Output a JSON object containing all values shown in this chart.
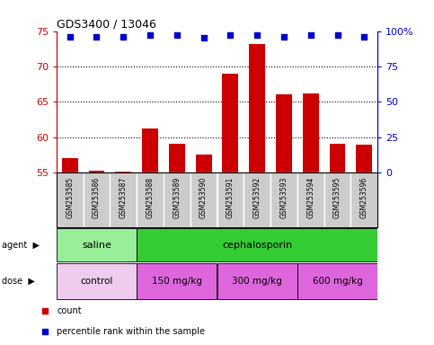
{
  "title": "GDS3400 / 13046",
  "samples": [
    "GSM253585",
    "GSM253586",
    "GSM253587",
    "GSM253588",
    "GSM253589",
    "GSM253590",
    "GSM253591",
    "GSM253592",
    "GSM253593",
    "GSM253594",
    "GSM253595",
    "GSM253596"
  ],
  "counts": [
    57.0,
    55.2,
    55.1,
    61.2,
    59.1,
    57.5,
    69.0,
    73.2,
    66.1,
    66.2,
    59.1,
    59.0
  ],
  "percentile_ranks": [
    96,
    96,
    96,
    97,
    97,
    95,
    97,
    97,
    96,
    97,
    97,
    96
  ],
  "ylim_left": [
    55,
    75
  ],
  "ylim_right": [
    0,
    100
  ],
  "yticks_left": [
    55,
    60,
    65,
    70,
    75
  ],
  "yticks_right": [
    0,
    25,
    50,
    75,
    100
  ],
  "ytick_labels_right": [
    "0",
    "25",
    "50",
    "75",
    "100%"
  ],
  "bar_color": "#cc0000",
  "dot_color": "#0000cc",
  "bar_width": 0.6,
  "agent_labels": [
    {
      "text": "saline",
      "start": 0,
      "end": 3,
      "color": "#99ee99"
    },
    {
      "text": "cephalosporin",
      "start": 3,
      "end": 12,
      "color": "#33cc33"
    }
  ],
  "dose_labels": [
    {
      "text": "control",
      "start": 0,
      "end": 3,
      "color": "#eeccee"
    },
    {
      "text": "150 mg/kg",
      "start": 3,
      "end": 6,
      "color": "#dd66dd"
    },
    {
      "text": "300 mg/kg",
      "start": 6,
      "end": 9,
      "color": "#dd66dd"
    },
    {
      "text": "600 mg/kg",
      "start": 9,
      "end": 12,
      "color": "#dd66dd"
    }
  ],
  "grid_color": "#000000",
  "tick_color_left": "#cc0000",
  "tick_color_right": "#0000cc",
  "bg_color": "#ffffff",
  "xticklabel_bg": "#cccccc",
  "gridline_yticks": [
    60,
    65,
    70
  ]
}
